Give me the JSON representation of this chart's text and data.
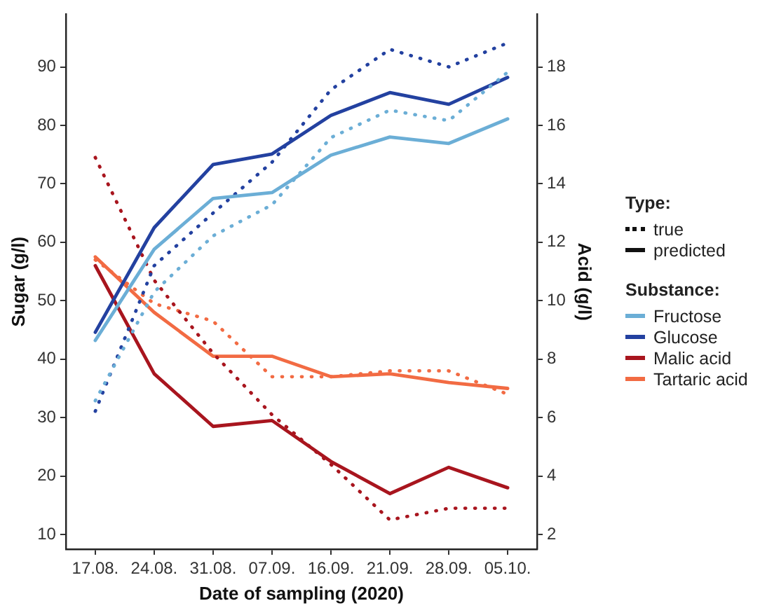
{
  "chart_data": {
    "type": "line",
    "xlabel": "Date of sampling (2020)",
    "ylabel": "Sugar (g/l)",
    "y2label": "Acid (g/l)",
    "legend_title": "Substance:",
    "legend": "right",
    "grid": false,
    "marker": "none",
    "categories": [
      "17.08.",
      "24.08.",
      "31.08.",
      "07.09.",
      "16.09.",
      "21.09.",
      "28.09.",
      "05.10."
    ],
    "ylim": [
      7.5,
      99
    ],
    "yticks": [
      10,
      20,
      30,
      40,
      50,
      60,
      70,
      80,
      90
    ],
    "y2lim": [
      1.5,
      19.8
    ],
    "y2ticks": [
      2,
      4,
      6,
      8,
      10,
      12,
      14,
      16,
      18
    ],
    "annotations": [
      "Type:",
      "true",
      "predicted"
    ],
    "series": [
      {
        "color": "#6baed6",
        "line_style": "dotted",
        "values": [
          32.9,
          51.5,
          61.1,
          66.4,
          77.9,
          82.6,
          80.8,
          89.1
        ]
      },
      {
        "name": "Fructose",
        "color": "#6baed6",
        "line_style": "solid",
        "values": [
          43.2,
          58.8,
          67.5,
          68.5,
          74.9,
          78.0,
          76.9,
          81.1
        ]
      },
      {
        "color": "#2341a0",
        "line_style": "dotted",
        "values": [
          31.1,
          56,
          65,
          73.7,
          86.1,
          93,
          90,
          94.1
        ]
      },
      {
        "name": "Glucose",
        "color": "#2341a0",
        "line_style": "solid",
        "values": [
          44.6,
          62.5,
          73.3,
          75.1,
          81.7,
          85.6,
          83.6,
          88.2
        ]
      },
      {
        "color": "#a8151e",
        "axis": "y2",
        "line_style": "dotted",
        "values": [
          14.9,
          10.7,
          8.2,
          6.1,
          4.4,
          2.5,
          2.9,
          2.9
        ]
      },
      {
        "name": "Malic acid",
        "color": "#a8151e",
        "axis": "y2",
        "line_style": "solid",
        "values": [
          11.2,
          7.5,
          5.7,
          5.9,
          4.5,
          3.4,
          4.3,
          3.6
        ]
      },
      {
        "color": "#f26b43",
        "axis": "y2",
        "line_style": "dotted",
        "values": [
          11.4,
          9.9,
          9.3,
          7.4,
          7.4,
          7.6,
          7.6,
          6.8
        ]
      },
      {
        "name": "Tartaric acid",
        "color": "#f26b43",
        "axis": "y2",
        "line_style": "solid",
        "values": [
          11.5,
          9.6,
          8.1,
          8.1,
          7.4,
          7.5,
          7.2,
          7.0
        ]
      }
    ]
  }
}
